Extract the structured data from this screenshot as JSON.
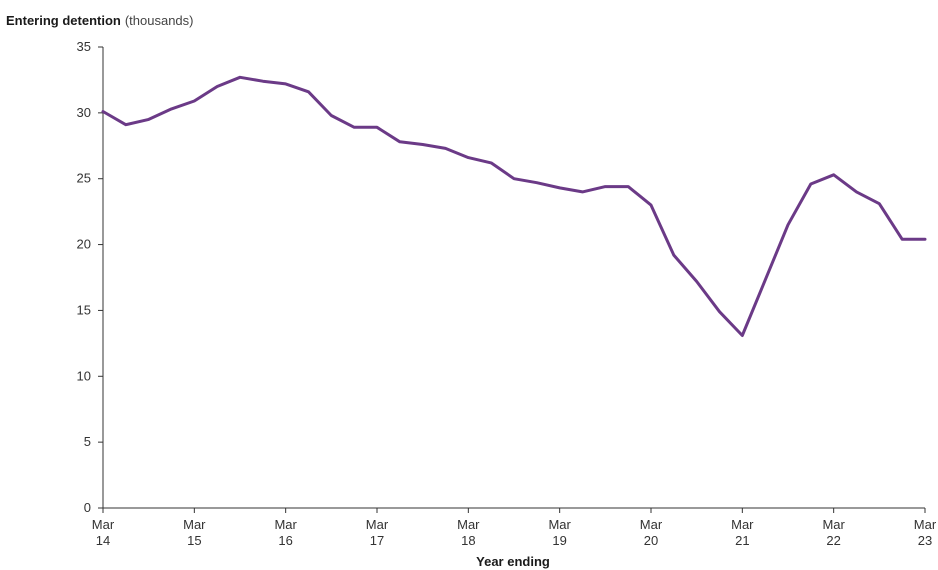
{
  "chart_data": {
    "type": "line",
    "ylabel": "Entering detention",
    "ylabel_unit": "(thousands)",
    "xlabel": "Year ending",
    "ylim": [
      0,
      35
    ],
    "yticks": [
      "0",
      "5",
      "10",
      "15",
      "20",
      "25",
      "30",
      "35"
    ],
    "xticks": [
      {
        "month": "Mar",
        "year": "14"
      },
      {
        "month": "Mar",
        "year": "15"
      },
      {
        "month": "Mar",
        "year": "16"
      },
      {
        "month": "Mar",
        "year": "17"
      },
      {
        "month": "Mar",
        "year": "18"
      },
      {
        "month": "Mar",
        "year": "19"
      },
      {
        "month": "Mar",
        "year": "20"
      },
      {
        "month": "Mar",
        "year": "21"
      },
      {
        "month": "Mar",
        "year": "22"
      },
      {
        "month": "Mar",
        "year": "23"
      }
    ],
    "x": [
      "Mar 14",
      "Jun 14",
      "Sep 14",
      "Dec 14",
      "Mar 15",
      "Jun 15",
      "Sep 15",
      "Dec 15",
      "Mar 16",
      "Jun 16",
      "Sep 16",
      "Dec 16",
      "Mar 17",
      "Jun 17",
      "Sep 17",
      "Dec 17",
      "Mar 18",
      "Jun 18",
      "Sep 18",
      "Dec 18",
      "Mar 19",
      "Jun 19",
      "Sep 19",
      "Dec 19",
      "Mar 20",
      "Jun 20",
      "Sep 20",
      "Dec 20",
      "Mar 21",
      "Jun 21",
      "Sep 21",
      "Dec 21",
      "Mar 22",
      "Jun 22",
      "Sep 22",
      "Dec 22",
      "Mar 23"
    ],
    "series": [
      {
        "color": "#6b3a87",
        "values": [
          30.1,
          29.1,
          29.5,
          30.3,
          30.9,
          32.0,
          32.7,
          32.4,
          32.2,
          31.6,
          29.8,
          28.9,
          28.9,
          27.8,
          27.6,
          27.3,
          26.6,
          26.2,
          25.0,
          24.7,
          24.3,
          24.0,
          24.4,
          24.4,
          23.0,
          19.2,
          17.2,
          14.9,
          13.1,
          17.3,
          21.5,
          24.6,
          25.3,
          24.0,
          23.1,
          20.4,
          20.4
        ]
      }
    ],
    "grid": false,
    "legend": "none"
  }
}
